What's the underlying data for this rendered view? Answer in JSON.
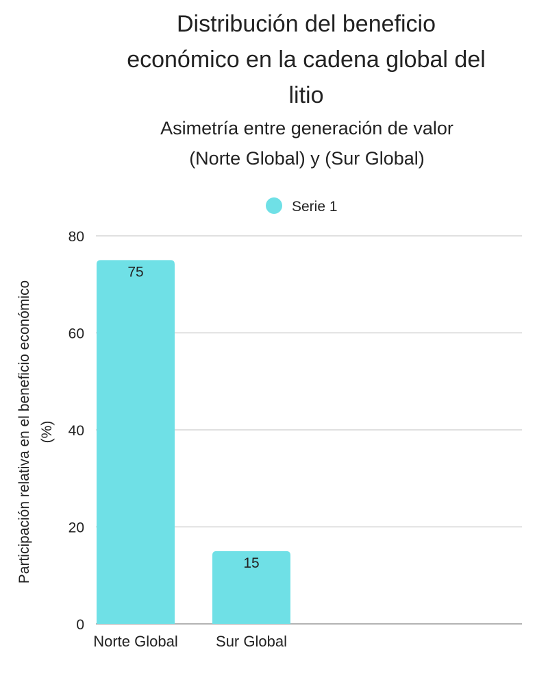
{
  "chart_data": {
    "type": "bar",
    "title_lines": [
      "Distribución del beneficio",
      "económico en la cadena global del",
      "litio"
    ],
    "subtitle_lines": [
      "Asimetría entre generación de valor",
      "(Norte Global) y (Sur Global)"
    ],
    "xlabel": "",
    "ylabel_lines": [
      "Participación relativa en el beneficio económico",
      "(%)"
    ],
    "ylim": [
      0,
      80
    ],
    "yticks": [
      0,
      20,
      40,
      60,
      80
    ],
    "grid": true,
    "legend_position": "top-center",
    "categories": [
      "Norte Global",
      "Sur Global"
    ],
    "series": [
      {
        "name": "Serie 1",
        "values": [
          75,
          15
        ],
        "color": "#6fe0e6"
      }
    ],
    "data_labels": [
      "75",
      "15"
    ]
  }
}
